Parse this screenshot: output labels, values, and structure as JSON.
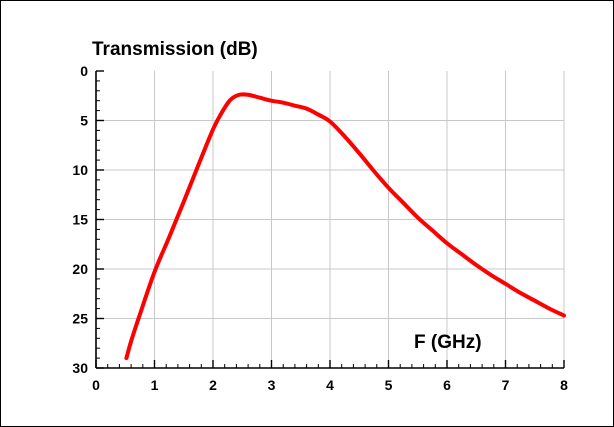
{
  "chart_data": {
    "type": "line",
    "title": "",
    "ylabel": "Transmission (dB)",
    "xlabel": "F (GHz)",
    "xlim": [
      0,
      8
    ],
    "ylim": [
      0,
      30
    ],
    "y_inverted": true,
    "grid": true,
    "x_ticks": [
      0,
      1,
      2,
      3,
      4,
      5,
      6,
      7,
      8
    ],
    "y_ticks": [
      0,
      5,
      10,
      15,
      20,
      25,
      30
    ],
    "x_tick_labels": [
      "0",
      "1",
      "2",
      "3",
      "4",
      "5",
      "6",
      "7",
      "8"
    ],
    "y_tick_labels": [
      "0",
      "5",
      "10",
      "15",
      "20",
      "25",
      "30"
    ],
    "colors": {
      "line": "#ff0000",
      "grid": "#c8c8c8",
      "axis": "#000000"
    },
    "series": [
      {
        "values_x": [
          0.52,
          0.6,
          0.75,
          1.0,
          1.25,
          1.5,
          1.75,
          2.0,
          2.15,
          2.3,
          2.45,
          2.6,
          2.8,
          3.0,
          3.2,
          3.4,
          3.6,
          3.8,
          4.0,
          4.25,
          4.5,
          4.75,
          5.0,
          5.25,
          5.5,
          5.75,
          6.0,
          6.25,
          6.5,
          6.75,
          7.0,
          7.25,
          7.5,
          7.75,
          8.0
        ],
        "values_y": [
          29.0,
          27.3,
          24.6,
          20.3,
          16.8,
          13.2,
          9.5,
          5.9,
          4.2,
          2.9,
          2.4,
          2.4,
          2.7,
          3.0,
          3.2,
          3.5,
          3.8,
          4.4,
          5.1,
          6.6,
          8.3,
          10.1,
          11.8,
          13.3,
          14.8,
          16.1,
          17.4,
          18.5,
          19.6,
          20.6,
          21.5,
          22.4,
          23.2,
          24.0,
          24.7
        ]
      }
    ]
  }
}
